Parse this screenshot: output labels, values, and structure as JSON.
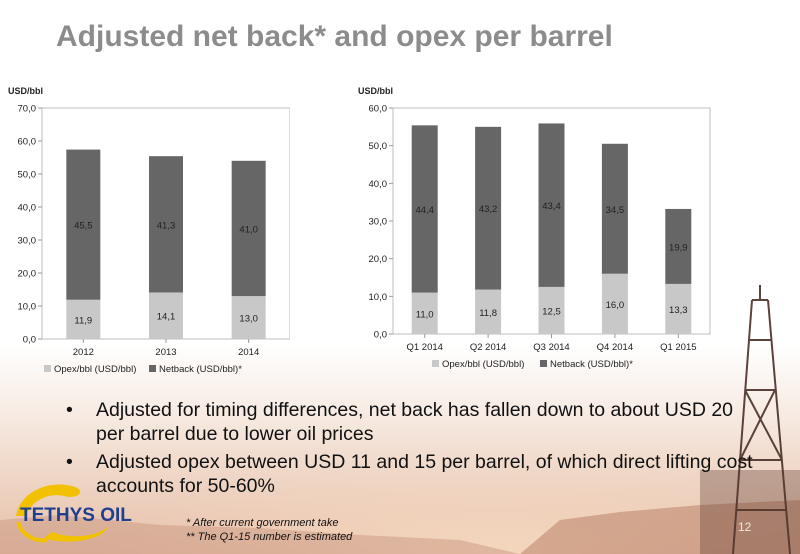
{
  "title": "Adjusted net back* and opex per barrel",
  "chart_data": [
    {
      "type": "bar",
      "stacked": true,
      "unit_label": "USD/bbl",
      "categories": [
        "2012",
        "2013",
        "2014"
      ],
      "series": [
        {
          "name": "Opex/bbl (USD/bbl)",
          "values": [
            11.9,
            14.1,
            13.0
          ],
          "labels": [
            "11,9",
            "14,1",
            "13,0"
          ],
          "color": "#c8c8c8"
        },
        {
          "name": "Netback (USD/bbl)*",
          "values": [
            45.5,
            41.3,
            41.0
          ],
          "labels": [
            "45,5",
            "41,3",
            "41,0"
          ],
          "color": "#666666"
        }
      ],
      "ylim": [
        0,
        70
      ],
      "yticks": [
        "0,0",
        "10,0",
        "20,0",
        "30,0",
        "40,0",
        "50,0",
        "60,0",
        "70,0"
      ],
      "grid": false,
      "legend": "bottom"
    },
    {
      "type": "bar",
      "stacked": true,
      "unit_label": "USD/bbl",
      "categories": [
        "Q1 2014",
        "Q2 2014",
        "Q3 2014",
        "Q4 2014",
        "Q1 2015"
      ],
      "series": [
        {
          "name": "Opex/bbl (USD/bbl)",
          "values": [
            11.0,
            11.8,
            12.5,
            16.0,
            13.3
          ],
          "labels": [
            "11,0",
            "11,8",
            "12,5",
            "16,0",
            "13,3"
          ],
          "color": "#c8c8c8"
        },
        {
          "name": "Netback (USD/bbl)*",
          "values": [
            44.4,
            43.2,
            43.4,
            34.5,
            19.9
          ],
          "labels": [
            "44,4",
            "43,2",
            "43,4",
            "34,5",
            "19,9"
          ],
          "color": "#666666"
        }
      ],
      "ylim": [
        0,
        60
      ],
      "yticks": [
        "0,0",
        "10,0",
        "20,0",
        "30,0",
        "40,0",
        "50,0",
        "60,0"
      ],
      "grid": false,
      "legend": "bottom"
    }
  ],
  "bullets": [
    "Adjusted for timing differences, net back has fallen down to about USD 20 per barrel due to lower oil prices",
    "Adjusted opex between USD 11 and 15 per barrel, of which direct lifting cost accounts for 50-60%"
  ],
  "bullet_symbol": "•",
  "logo_text": "TETHYS OIL",
  "footnotes": [
    "* After current government take",
    "** The Q1-15 number is estimated"
  ],
  "page_number": "12",
  "colors": {
    "title": "#8c8c8c",
    "opex": "#c8c8c8",
    "netback": "#666666",
    "logo_blue": "#1f3f8f",
    "logo_gold": "#f2c200"
  }
}
